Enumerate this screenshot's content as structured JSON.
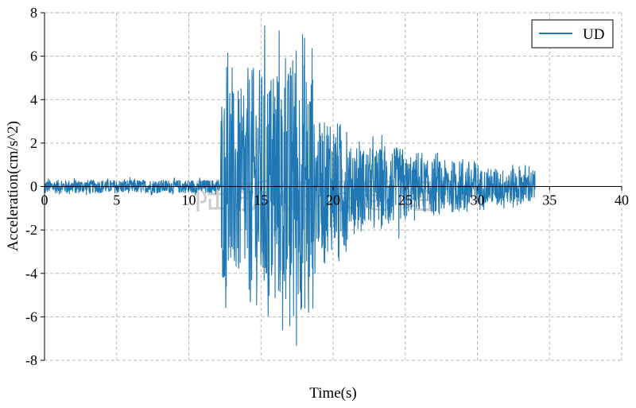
{
  "chart_data": {
    "type": "line",
    "title": "",
    "xlabel": "Time(s)",
    "ylabel": "Acceleration(cm/s^2)",
    "xlim": [
      0,
      40
    ],
    "ylim": [
      -8,
      8
    ],
    "xticks": [
      0,
      5,
      10,
      15,
      20,
      25,
      30,
      35,
      40
    ],
    "yticks": [
      -8,
      -6,
      -4,
      -2,
      0,
      2,
      4,
      6,
      8
    ],
    "grid": true,
    "legend_position": "top-right",
    "series": [
      {
        "name": "UD",
        "color": "#1f77b4",
        "sample_interval_s": 0.02,
        "duration_s": 34,
        "segments": [
          {
            "t_start": 0,
            "t_end": 12.2,
            "amplitude": 0.3
          },
          {
            "t_start": 12.2,
            "t_end": 14,
            "amplitude": 4.5
          },
          {
            "t_start": 14,
            "t_end": 17,
            "amplitude": 5.5
          },
          {
            "t_start": 17,
            "t_end": 18.6,
            "amplitude": 5.8
          },
          {
            "t_start": 18.6,
            "t_end": 21,
            "amplitude": 3.0
          },
          {
            "t_start": 21,
            "t_end": 25,
            "amplitude": 1.8
          },
          {
            "t_start": 25,
            "t_end": 30,
            "amplitude": 1.2
          },
          {
            "t_start": 30,
            "t_end": 34,
            "amplitude": 0.8
          }
        ],
        "peaks": [
          {
            "x": 12.7,
            "y": 6.15
          },
          {
            "x": 12.6,
            "y": -4.6
          },
          {
            "x": 16.7,
            "y": 5.9
          },
          {
            "x": 16.5,
            "y": -6.6
          },
          {
            "x": 17.2,
            "y": 5.8
          },
          {
            "x": 17.0,
            "y": -6.4
          },
          {
            "x": 18.3,
            "y": -5.8
          },
          {
            "x": 18.0,
            "y": 5.6
          }
        ]
      }
    ]
  },
  "watermark": "陆新征课题组"
}
